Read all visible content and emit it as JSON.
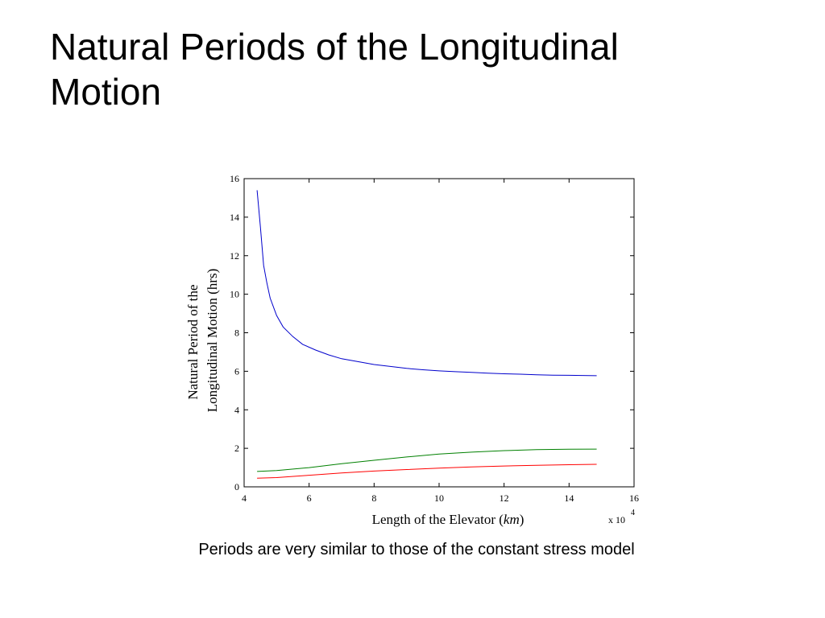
{
  "slide": {
    "title_line1": "Natural Periods of the Longitudinal",
    "title_line2": "Motion",
    "caption": "Periods are very similar to those of the constant stress model"
  },
  "chart_data": {
    "type": "line",
    "xlabel_main": "Length of the Elevator (",
    "xlabel_unit": "km",
    "xlabel_close": ")",
    "x_multiplier_label": "x 10",
    "x_multiplier_exponent": "4",
    "ylabel_line1": "Natural  Period of the",
    "ylabel_line2": "Longitudinal Motion (hrs)",
    "xlim": [
      4,
      16
    ],
    "ylim": [
      0,
      16
    ],
    "xticks": [
      4,
      6,
      8,
      10,
      12,
      14,
      16
    ],
    "yticks": [
      0,
      2,
      4,
      6,
      8,
      10,
      12,
      14,
      16
    ],
    "grid": false,
    "series": [
      {
        "color": "#0000cc",
        "x": [
          4.4,
          4.5,
          4.6,
          4.7,
          4.8,
          5.0,
          5.2,
          5.5,
          5.8,
          6.2,
          6.6,
          7.0,
          7.5,
          8.0,
          8.5,
          9.0,
          9.5,
          10.0,
          10.5,
          11.0,
          11.5,
          12.0,
          12.5,
          13.0,
          13.5,
          14.0,
          14.4,
          14.85
        ],
        "values": [
          15.4,
          13.5,
          11.5,
          10.6,
          9.8,
          8.9,
          8.3,
          7.8,
          7.4,
          7.1,
          6.85,
          6.65,
          6.5,
          6.35,
          6.25,
          6.15,
          6.08,
          6.02,
          5.98,
          5.94,
          5.9,
          5.87,
          5.85,
          5.82,
          5.8,
          5.79,
          5.78,
          5.77
        ]
      },
      {
        "color": "#008000",
        "x": [
          4.4,
          5.0,
          6.0,
          7.0,
          8.0,
          9.0,
          10.0,
          11.0,
          12.0,
          13.0,
          14.0,
          14.85
        ],
        "values": [
          0.8,
          0.85,
          1.0,
          1.2,
          1.38,
          1.55,
          1.7,
          1.8,
          1.88,
          1.93,
          1.95,
          1.96
        ]
      },
      {
        "color": "#ff0000",
        "x": [
          4.4,
          5.0,
          6.0,
          7.0,
          8.0,
          9.0,
          10.0,
          11.0,
          12.0,
          13.0,
          14.0,
          14.85
        ],
        "values": [
          0.45,
          0.48,
          0.6,
          0.72,
          0.82,
          0.9,
          0.97,
          1.03,
          1.08,
          1.12,
          1.15,
          1.17
        ]
      }
    ]
  }
}
